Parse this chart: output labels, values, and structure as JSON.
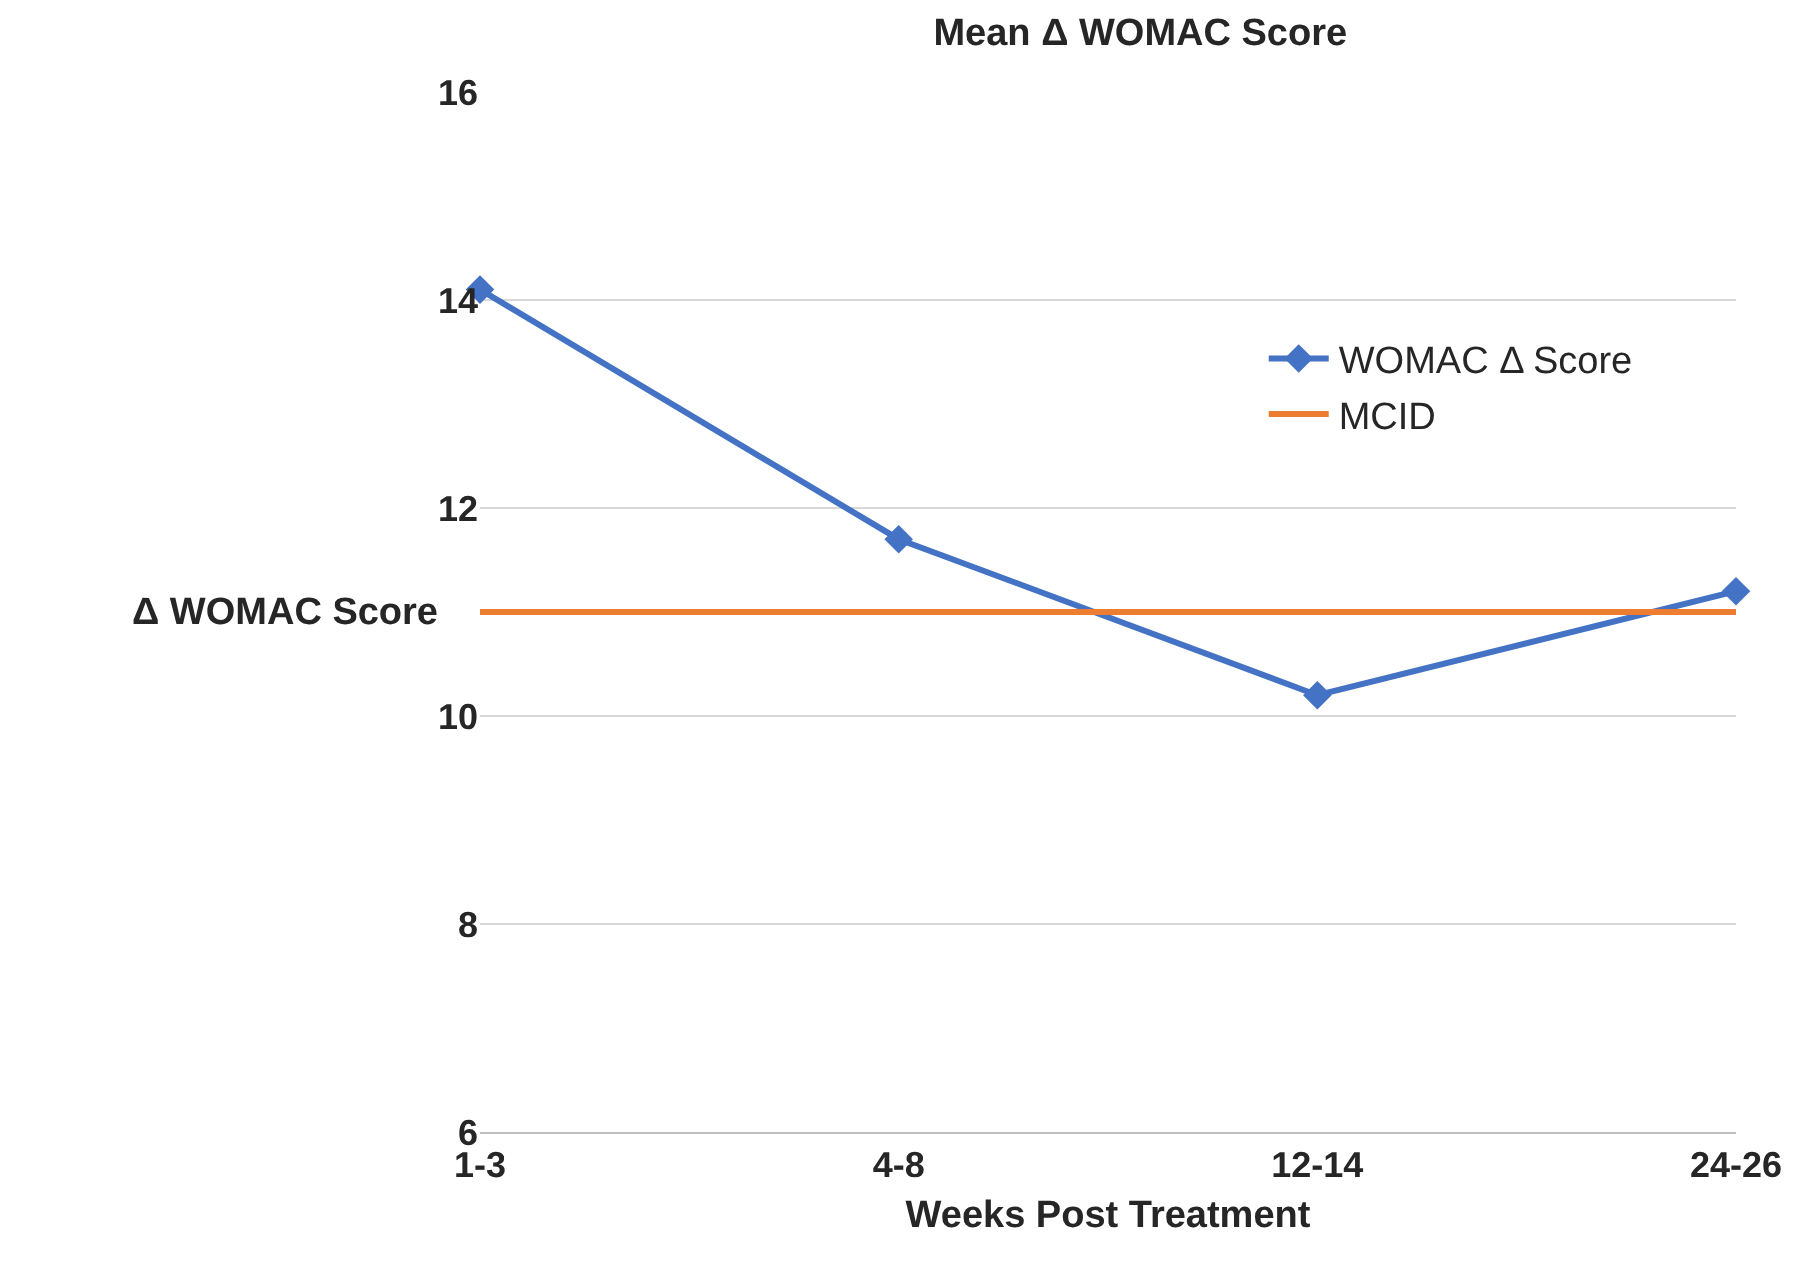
{
  "chart_data": {
    "type": "line",
    "title": "Mean Δ WOMAC Score",
    "xlabel": "Weeks Post Treatment",
    "ylabel": "Δ WOMAC Score",
    "categories": [
      "1-3",
      "4-8",
      "12-14",
      "24-26"
    ],
    "series": [
      {
        "name": "WOMAC Δ Score",
        "color": "#4472c4",
        "values": [
          14.1,
          11.7,
          10.2,
          11.2
        ],
        "marker": "diamond"
      },
      {
        "name": "MCID",
        "color": "#ed7d31",
        "values": [
          11,
          11,
          11,
          11
        ],
        "marker": "none"
      }
    ],
    "ylim": [
      6,
      16
    ],
    "yticks": [
      6,
      8,
      10,
      12,
      14,
      16
    ],
    "grid": "y",
    "legend": "top right",
    "line_style": "solid"
  }
}
